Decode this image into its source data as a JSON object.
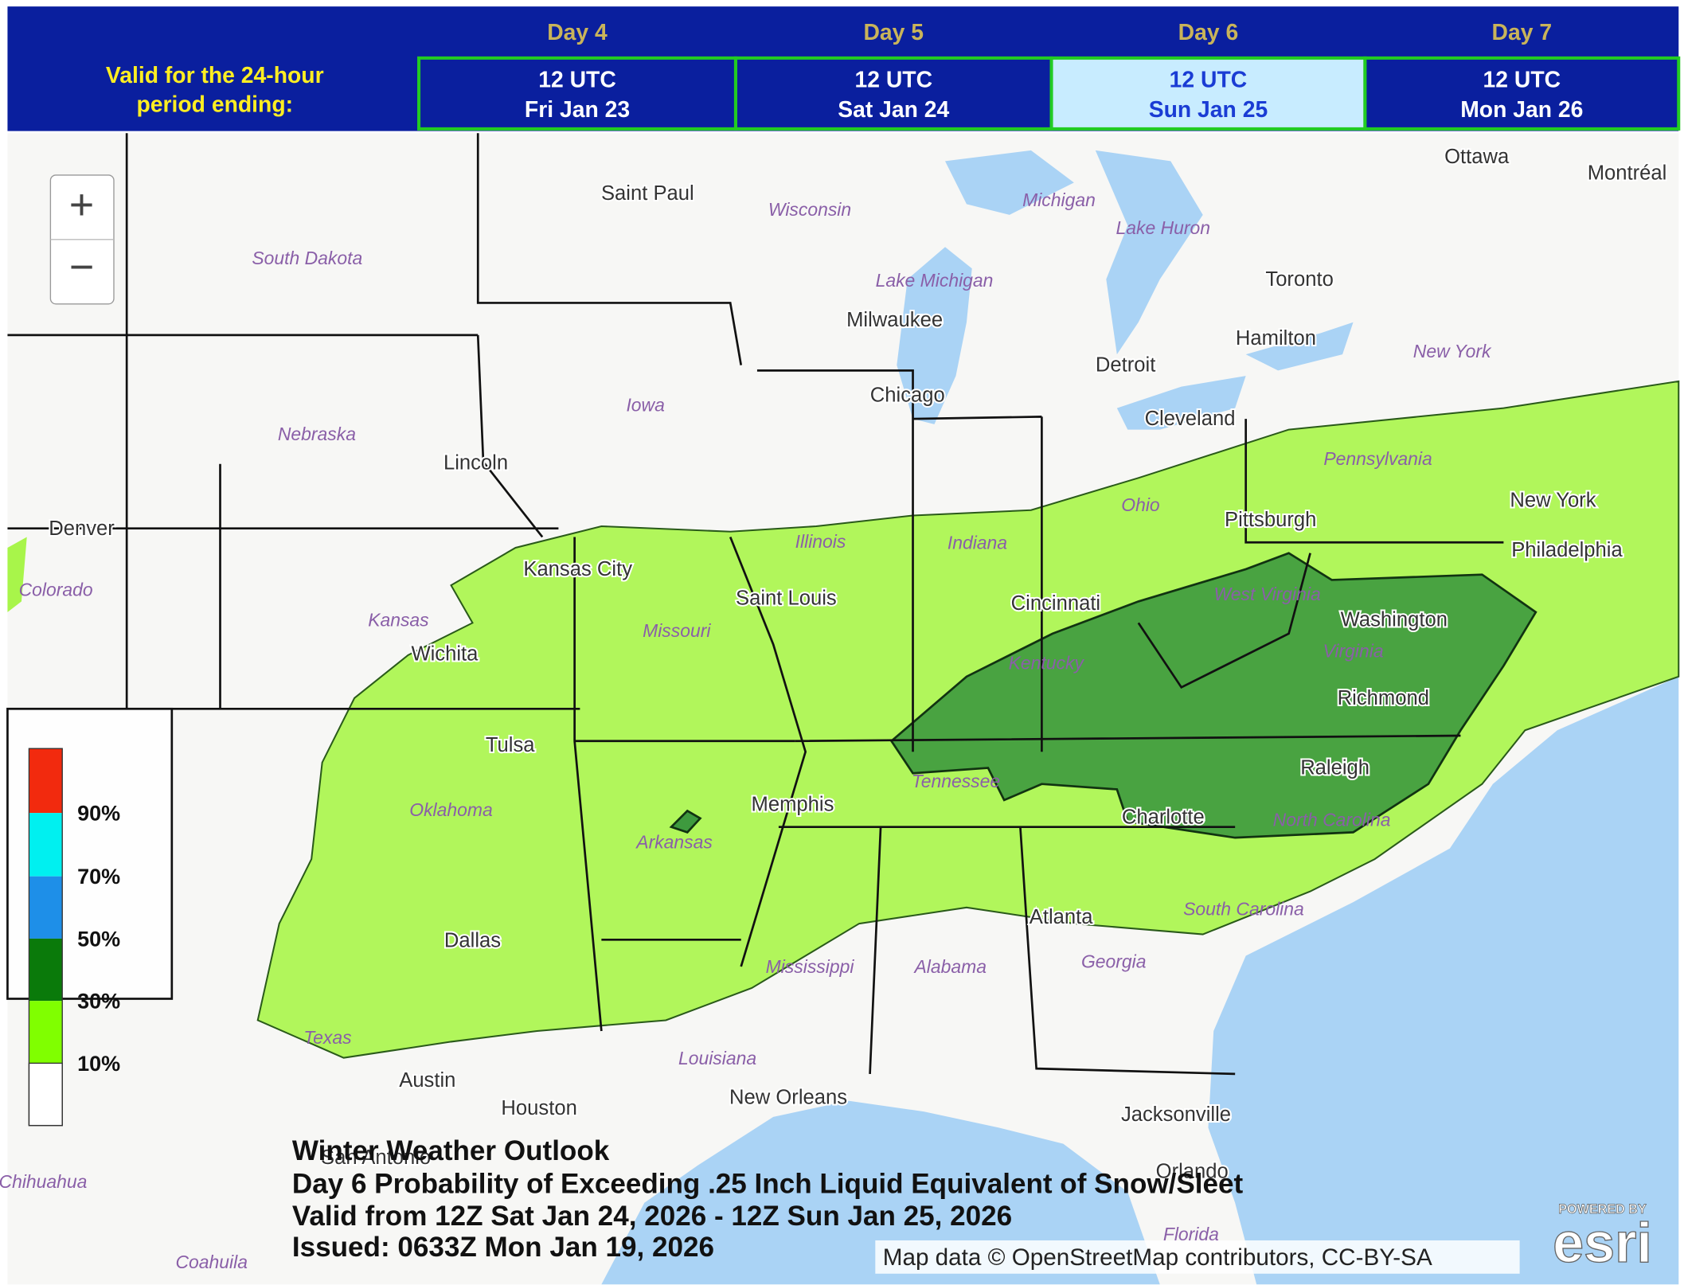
{
  "header": {
    "valid_label": [
      "Valid for the 24-hour",
      "period ending:"
    ],
    "days": [
      {
        "day": "Day 4",
        "time": "12 UTC",
        "date": "Fri Jan 23"
      },
      {
        "day": "Day 5",
        "time": "12 UTC",
        "date": "Sat Jan 24"
      },
      {
        "day": "Day 6",
        "time": "12 UTC",
        "date": "Sun Jan 25",
        "selected": true
      },
      {
        "day": "Day 7",
        "time": "12 UTC",
        "date": "Mon Jan 26"
      }
    ]
  },
  "zoom": {
    "in": "+",
    "out": "−"
  },
  "map": {
    "cities": [
      "Saint Paul",
      "Milwaukee",
      "Chicago",
      "Detroit",
      "Toronto",
      "Hamilton",
      "Cleveland",
      "Ottawa",
      "Montréal",
      "Lincoln",
      "Denver",
      "Kansas City",
      "Saint Louis",
      "Cincinnati",
      "Pittsburgh",
      "New York",
      "Philadelphia",
      "Washington",
      "Richmond",
      "Raleigh",
      "Charlotte",
      "Wichita",
      "Tulsa",
      "Memphis",
      "Atlanta",
      "Dallas",
      "Austin",
      "Houston",
      "San Antonio",
      "New Orleans",
      "Jacksonville",
      "Orlando"
    ],
    "regions": [
      "Wisconsin",
      "Michigan",
      "Lake Huron",
      "Lake Michigan",
      "South Dakota",
      "Iowa",
      "Nebraska",
      "New York",
      "Pennsylvania",
      "Ohio",
      "Illinois",
      "Indiana",
      "Colorado",
      "Kansas",
      "Missouri",
      "West Virginia",
      "Virginia",
      "Kentucky",
      "Tennessee",
      "Arkansas",
      "Oklahoma",
      "Mississippi",
      "Alabama",
      "Georgia",
      "North Carolina",
      "South Carolina",
      "Texas",
      "Louisiana",
      "Florida",
      "Chihuahua",
      "Coahuila"
    ]
  },
  "legend": [
    "90%",
    "70%",
    "50%",
    "30%",
    "10%"
  ],
  "title_block": [
    "Winter Weather Outlook",
    "Day 6 Probability of Exceeding .25 Inch Liquid Equivalent of Snow/Sleet",
    "Valid from 12Z Sat Jan 24, 2026 - 12Z Sun Jan 25, 2026",
    "Issued: 0633Z Mon Jan 19, 2026"
  ],
  "attribution": "Map data © OpenStreetMap contributors, CC-BY-SA",
  "esri": {
    "powered": "POWERED BY",
    "brand": "esri"
  }
}
